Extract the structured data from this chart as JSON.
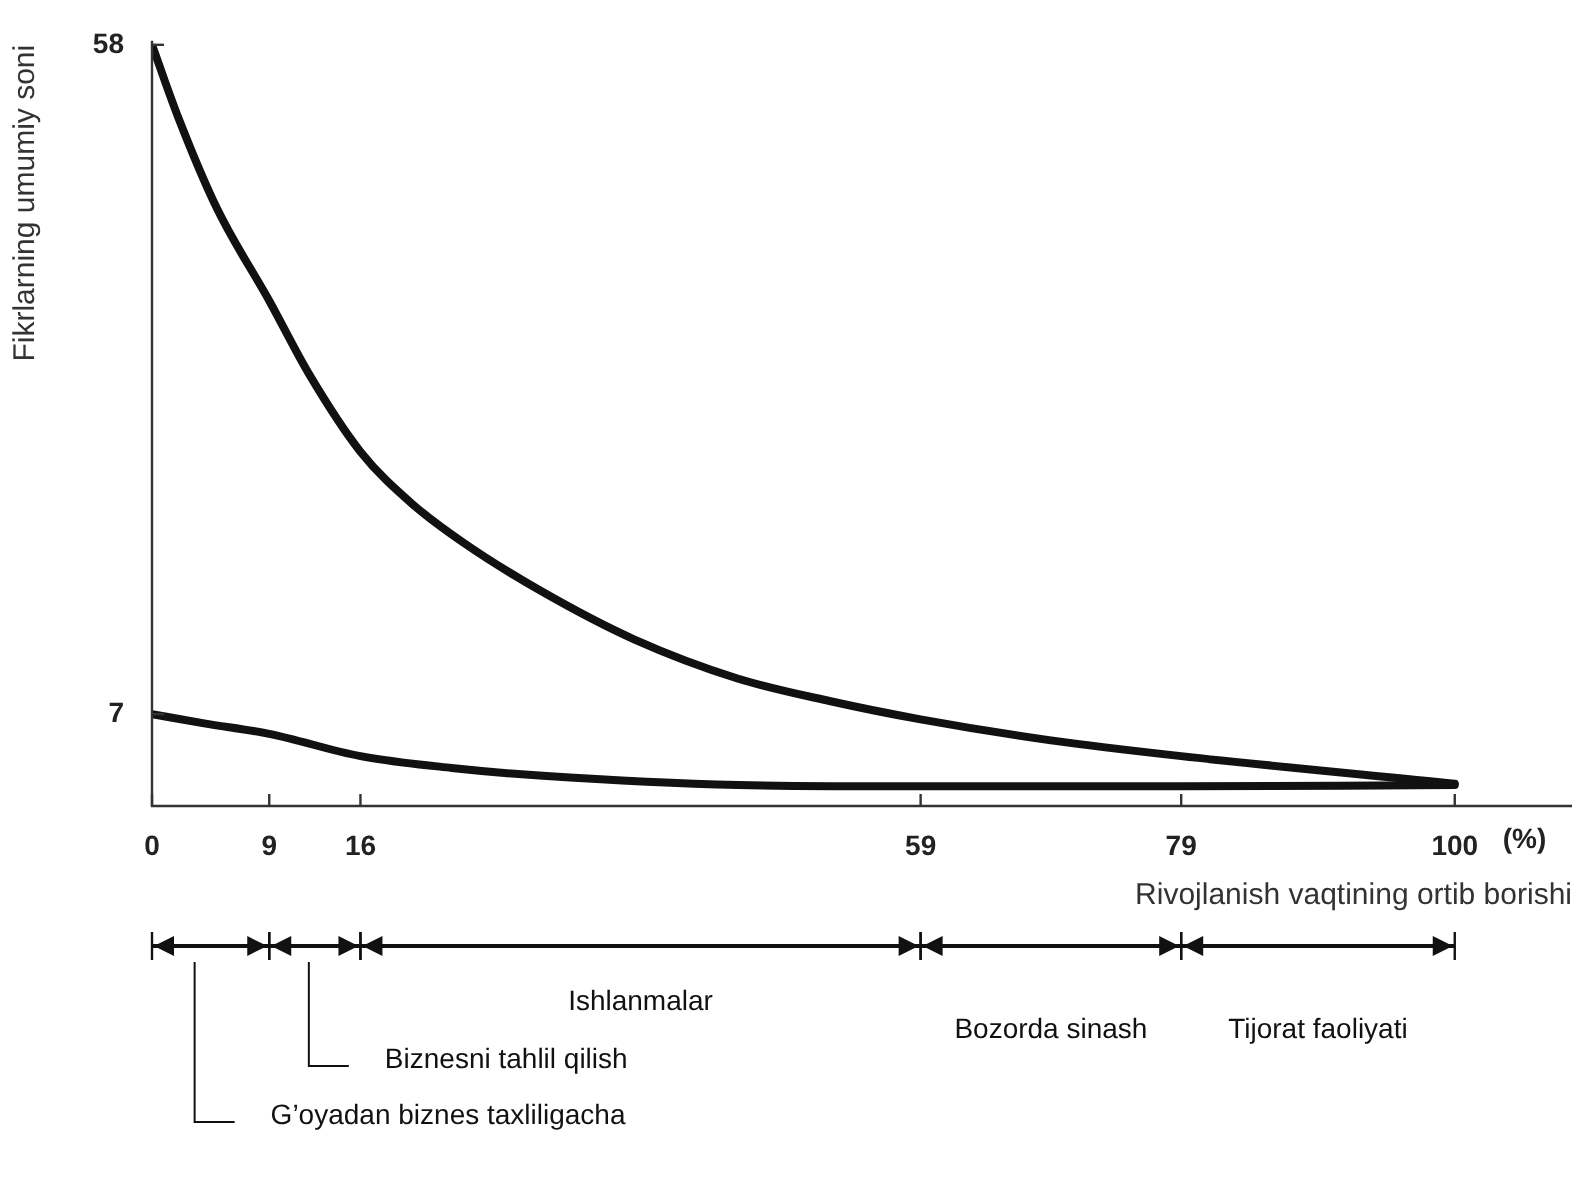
{
  "chart_data": {
    "type": "line",
    "ylabel": "Fikrlarning umumiy soni",
    "xlabel": "Rivojlanish vaqtining ortib borishi",
    "annotations": [
      "(%)",
      "G’oyadan biznes taxliligacha",
      "Biznesni tahlil qilish",
      "Ishlanmalar",
      "Bozorda sinash",
      "Tijorat faoliyati"
    ],
    "xlim": [
      0,
      109
    ],
    "xticks": [
      0,
      9,
      16,
      59,
      79,
      100
    ],
    "ylim": [
      0,
      58
    ],
    "yticks": [
      7,
      58
    ],
    "series": [
      {
        "color": "#111111",
        "x": [
          0,
          2,
          5,
          9,
          12,
          16,
          20,
          24,
          30,
          37,
          45,
          52,
          59,
          69,
          79,
          100
        ],
        "values": [
          58,
          52.5,
          45.5,
          38.5,
          33,
          27,
          23,
          20,
          16.3,
          12.7,
          9.7,
          8,
          6.6,
          5,
          3.8,
          1.7
        ]
      },
      {
        "color": "#111111",
        "x": [
          0,
          4,
          9,
          16,
          23,
          30,
          45,
          59,
          79,
          100
        ],
        "values": [
          7,
          6.3,
          5.5,
          3.8,
          2.9,
          2.3,
          1.6,
          1.5,
          1.5,
          1.6
        ]
      }
    ],
    "grid": false,
    "legend": false,
    "marker": "none",
    "line_style": "solid"
  }
}
